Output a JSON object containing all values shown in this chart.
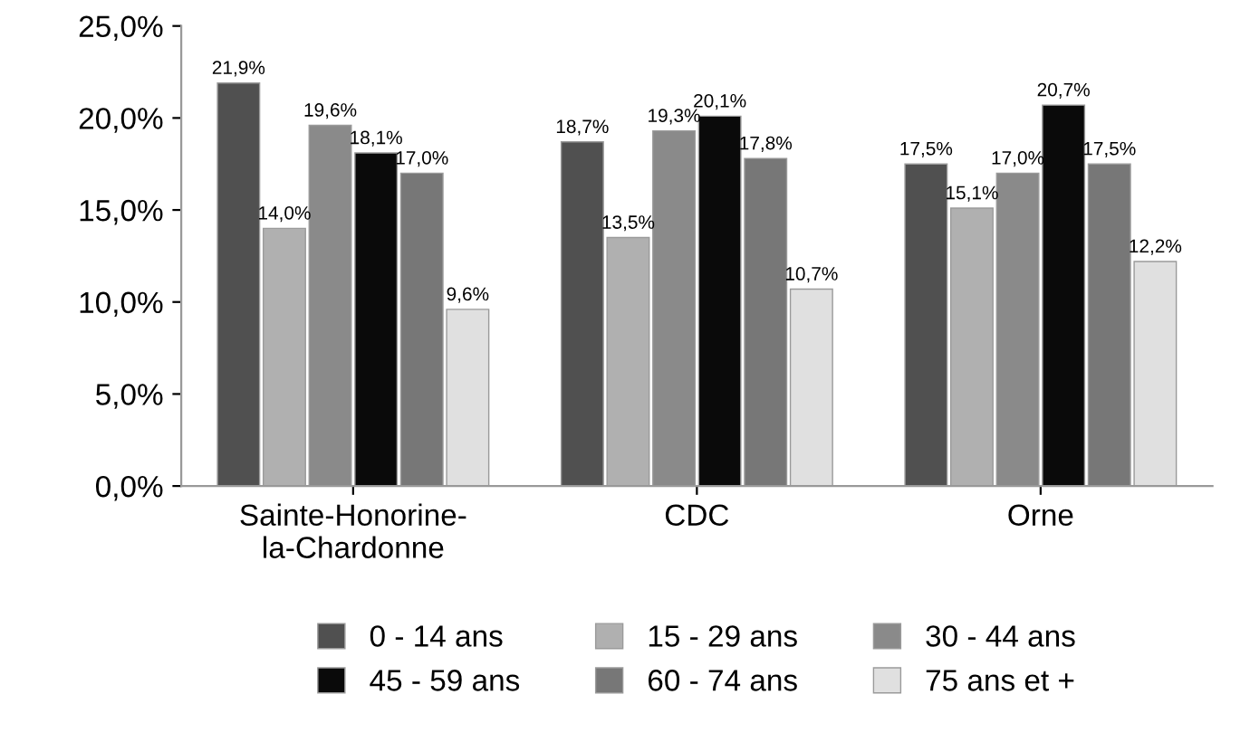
{
  "chart_data": {
    "type": "bar",
    "categories": [
      "Sainte-Honorine-\nla-Chardonne",
      "CDC",
      "Orne"
    ],
    "series": [
      {
        "name": "0 - 14 ans",
        "color": "#505050",
        "values": [
          21.9,
          18.7,
          17.5
        ],
        "value_labels": [
          "21,9%",
          "18,7%",
          "17,5%"
        ]
      },
      {
        "name": "15 - 29 ans",
        "color": "#b0b0b0",
        "values": [
          14.0,
          13.5,
          15.1
        ],
        "value_labels": [
          "14,0%",
          "13,5%",
          "15,1%"
        ]
      },
      {
        "name": "30 - 44 ans",
        "color": "#8a8a8a",
        "values": [
          19.6,
          19.3,
          17.0
        ],
        "value_labels": [
          "19,6%",
          "19,3%",
          "17,0%"
        ]
      },
      {
        "name": "45 - 59 ans",
        "color": "#0a0a0a",
        "values": [
          18.1,
          20.1,
          20.7
        ],
        "value_labels": [
          "18,1%",
          "20,1%",
          "20,7%"
        ]
      },
      {
        "name": "60 - 74 ans",
        "color": "#777777",
        "values": [
          17.0,
          17.8,
          17.5
        ],
        "value_labels": [
          "17,0%",
          "17,8%",
          "17,5%"
        ]
      },
      {
        "name": "75 ans et +",
        "color": "#e0e0e0",
        "values": [
          9.6,
          10.7,
          12.2
        ],
        "value_labels": [
          "9,6%",
          "10,7%",
          "12,2%"
        ]
      }
    ],
    "ylim": [
      0,
      25
    ],
    "yticks": [
      {
        "value": 0,
        "label": "0,0%"
      },
      {
        "value": 5,
        "label": "5,0%"
      },
      {
        "value": 10,
        "label": "10,0%"
      },
      {
        "value": 15,
        "label": "15,0%"
      },
      {
        "value": 20,
        "label": "20,0%"
      },
      {
        "value": 25,
        "label": "25,0%"
      }
    ],
    "grid": false,
    "legend": "bottom"
  }
}
